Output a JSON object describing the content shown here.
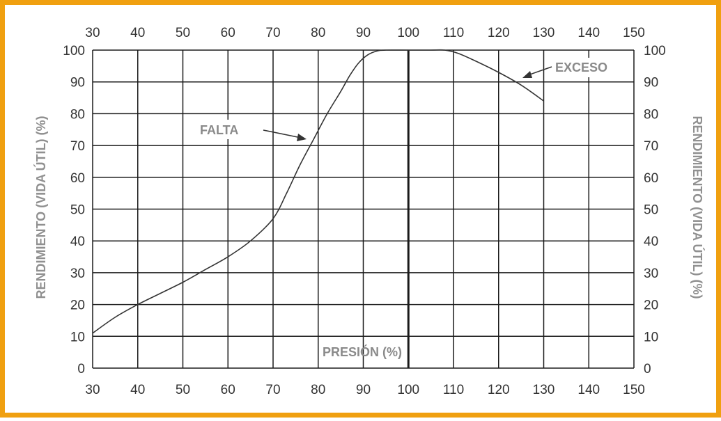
{
  "chart_data": {
    "type": "line",
    "title": "",
    "xlabel": "PRESIÓN (%)",
    "ylabel_left": "RENDIMIENTO (VIDA ÚTIL) (%)",
    "ylabel_right": "RENDIMIENTO (VIDA ÚTIL) (%)",
    "xlim": [
      30,
      150
    ],
    "ylim": [
      0,
      100
    ],
    "x_ticks": [
      30,
      40,
      50,
      60,
      70,
      80,
      90,
      100,
      110,
      120,
      130,
      140,
      150
    ],
    "y_ticks": [
      0,
      10,
      20,
      30,
      40,
      50,
      60,
      70,
      80,
      90,
      100
    ],
    "grid": true,
    "series": [
      {
        "x": [
          30,
          35,
          40,
          45,
          50,
          55,
          60,
          65,
          70,
          73,
          76,
          79,
          82,
          85,
          87,
          89,
          91,
          93,
          95,
          100,
          105,
          108,
          111,
          115,
          120,
          125,
          130
        ],
        "y": [
          11,
          16,
          20,
          23.5,
          27,
          31,
          35,
          40,
          47,
          55,
          64,
          72,
          80,
          87,
          92,
          96,
          98.5,
          99.7,
          100,
          100,
          100,
          100,
          99,
          96.5,
          93,
          89,
          84
        ]
      }
    ],
    "annotations": [
      {
        "text": "FALTA",
        "x": 79,
        "y": 72
      },
      {
        "text": "EXCESO",
        "x": 125,
        "y": 92
      }
    ],
    "colors": {
      "border": "#f0a010",
      "line": "#333333",
      "grid": "#1a1a1a",
      "label": "#8a8a8a"
    }
  }
}
